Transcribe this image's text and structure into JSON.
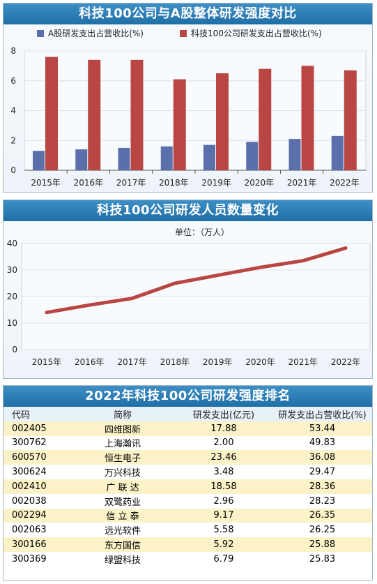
{
  "panel1": {
    "title": "科技100公司与A股整体研发强度对比",
    "chart_data": {
      "type": "bar",
      "categories": [
        "2015年",
        "2016年",
        "2017年",
        "2018年",
        "2019年",
        "2020年",
        "2021年",
        "2022年"
      ],
      "series": [
        {
          "name": "A股研发支出占营收比(%)",
          "values": [
            1.3,
            1.4,
            1.5,
            1.6,
            1.7,
            1.9,
            2.1,
            2.3
          ],
          "color": "#5b6faa"
        },
        {
          "name": "科技100公司研发支出占营收比(%)",
          "values": [
            7.6,
            7.4,
            7.4,
            6.1,
            6.5,
            6.8,
            7.0,
            6.7
          ],
          "color": "#b94643"
        }
      ],
      "ylim": [
        0,
        8
      ],
      "yticks": [
        0,
        2,
        4,
        6,
        8
      ]
    }
  },
  "panel2": {
    "title": "科技100公司研发人员数量变化",
    "chart_data": {
      "type": "line",
      "categories": [
        "2015年",
        "2016年",
        "2017年",
        "2018年",
        "2019年",
        "2020年",
        "2021年",
        "2022年"
      ],
      "series": [
        {
          "values": [
            14,
            16.8,
            19.3,
            25,
            28,
            31,
            33.5,
            38.3
          ],
          "color": "#b94643"
        }
      ],
      "unit_label": "单位：（万人）",
      "ylim": [
        0,
        40
      ],
      "yticks": [
        0,
        10,
        20,
        30,
        40
      ]
    }
  },
  "panel3": {
    "title": "2022年科技100公司研发强度排名",
    "headers": [
      "代码",
      "简称",
      "研发支出(亿元)",
      "研发支出占营收比(%)"
    ],
    "rows": [
      [
        "002405",
        "四维图新",
        "17.88",
        "53.44"
      ],
      [
        "300762",
        "上海瀚讯",
        "2.00",
        "49.83"
      ],
      [
        "600570",
        "恒生电子",
        "23.46",
        "36.08"
      ],
      [
        "300624",
        "万兴科技",
        "3.48",
        "29.47"
      ],
      [
        "002410",
        "广 联 达",
        "18.58",
        "28.36"
      ],
      [
        "002038",
        "双鹭药业",
        "2.96",
        "28.23"
      ],
      [
        "002294",
        "信 立 泰",
        "9.17",
        "26.35"
      ],
      [
        "002063",
        "远光软件",
        "5.58",
        "26.25"
      ],
      [
        "300166",
        "东方国信",
        "5.92",
        "25.88"
      ],
      [
        "300369",
        "绿盟科技",
        "6.79",
        "25.83"
      ]
    ]
  }
}
